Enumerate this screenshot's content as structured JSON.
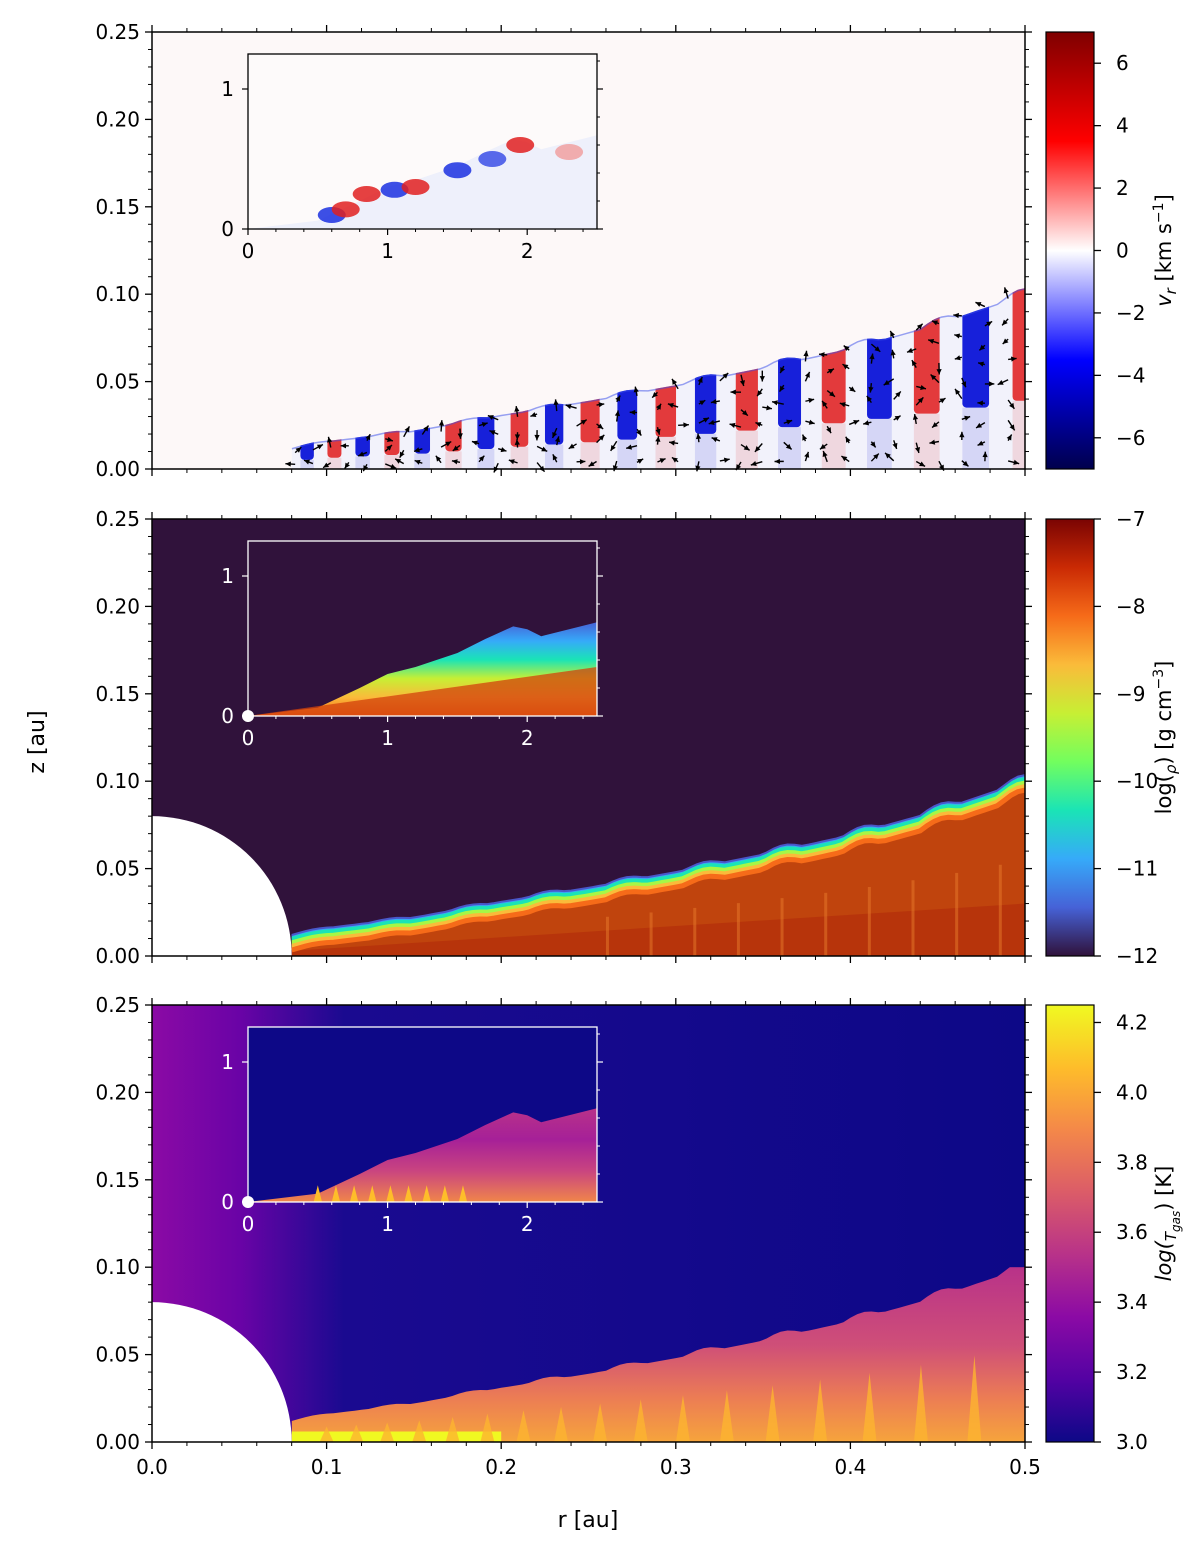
{
  "figure": {
    "shared_xlabel": "r [au]",
    "shared_ylabel": "z [au]"
  },
  "chart_data": [
    {
      "type": "heatmap",
      "name": "vr-panel",
      "quantity": "v_r",
      "xlim": [
        0.0,
        0.5
      ],
      "ylim": [
        0.0,
        0.25
      ],
      "xticks": [
        "0.0",
        "0.1",
        "0.2",
        "0.3",
        "0.4",
        "0.5"
      ],
      "yticks": [
        "0.00",
        "0.05",
        "0.10",
        "0.15",
        "0.20",
        "0.25"
      ],
      "colorbar": {
        "label_main": "v",
        "label_sub": "r",
        "label_unit_a": " [km s",
        "label_exp": "−1",
        "label_unit_b": "]",
        "min": -7,
        "max": 7,
        "ticks": [
          "6",
          "4",
          "2",
          "0",
          "−2",
          "−4",
          "−6"
        ],
        "tick_values": [
          6,
          4,
          2,
          0,
          -2,
          -4,
          -6
        ],
        "colormap": "seismic",
        "stops": [
          "#00004c",
          "#0000ff",
          "#ffffff",
          "#ff0000",
          "#7f0000"
        ]
      },
      "disk_surface_x": [
        0.08,
        0.1,
        0.15,
        0.2,
        0.25,
        0.3,
        0.35,
        0.4,
        0.45,
        0.5
      ],
      "disk_surface_z": [
        0.012,
        0.016,
        0.022,
        0.031,
        0.039,
        0.048,
        0.058,
        0.069,
        0.083,
        0.1
      ],
      "velocity_arrows": true,
      "inset": {
        "xlim": [
          0,
          2.5
        ],
        "ylim": [
          0,
          1.25
        ],
        "xticks": [
          "0",
          "1",
          "2"
        ],
        "yticks": [
          "0",
          "1"
        ]
      }
    },
    {
      "type": "heatmap",
      "name": "density-panel",
      "quantity": "log(rho)",
      "xlim": [
        0.0,
        0.5
      ],
      "ylim": [
        0.0,
        0.25
      ],
      "xticks": [
        "0.0",
        "0.1",
        "0.2",
        "0.3",
        "0.4",
        "0.5"
      ],
      "yticks": [
        "0.00",
        "0.05",
        "0.10",
        "0.15",
        "0.20",
        "0.25"
      ],
      "star_radius": 0.08,
      "colorbar": {
        "label_main": "log(",
        "label_sub": "ρ",
        "label_unit_a": ") [g cm",
        "label_exp": "−3",
        "label_unit_b": "]",
        "min": -12,
        "max": -7,
        "ticks": [
          "−7",
          "−8",
          "−9",
          "−10",
          "−11",
          "−12"
        ],
        "tick_values": [
          -7,
          -8,
          -9,
          -10,
          -11,
          -12
        ],
        "colormap": "turbo",
        "stops": [
          "#30123b",
          "#4662d7",
          "#36aaf9",
          "#1ae4b6",
          "#72fe5e",
          "#c7ef34",
          "#fabb3a",
          "#f66b19",
          "#ca2a04",
          "#7a0403"
        ]
      },
      "inset": {
        "xlim": [
          0,
          2.5
        ],
        "ylim": [
          0,
          1.25
        ],
        "xticks": [
          "0",
          "1",
          "2"
        ],
        "yticks": [
          "0",
          "1"
        ]
      }
    },
    {
      "type": "heatmap",
      "name": "temperature-panel",
      "quantity": "log(T_gas)",
      "xlim": [
        0.0,
        0.5
      ],
      "ylim": [
        0.0,
        0.25
      ],
      "xticks": [
        "0.0",
        "0.1",
        "0.2",
        "0.3",
        "0.4",
        "0.5"
      ],
      "yticks": [
        "0.00",
        "0.05",
        "0.10",
        "0.15",
        "0.20",
        "0.25"
      ],
      "star_radius": 0.08,
      "colorbar": {
        "label_main": "log(",
        "label_sub": "T",
        "label_subsub": "gas",
        "label_unit_a": ") [K]",
        "min": 3.0,
        "max": 4.25,
        "ticks": [
          "4.2",
          "4.0",
          "3.8",
          "3.6",
          "3.4",
          "3.2",
          "3.0"
        ],
        "tick_values": [
          4.2,
          4.0,
          3.8,
          3.6,
          3.4,
          3.2,
          3.0
        ],
        "colormap": "plasma",
        "stops": [
          "#0d0887",
          "#5302a3",
          "#8b0aa5",
          "#b83289",
          "#db5c68",
          "#f48849",
          "#febd2a",
          "#f0f921"
        ]
      },
      "inset": {
        "xlim": [
          0,
          2.5
        ],
        "ylim": [
          0,
          1.25
        ],
        "xticks": [
          "0",
          "1",
          "2"
        ],
        "yticks": [
          "0",
          "1"
        ]
      }
    }
  ]
}
